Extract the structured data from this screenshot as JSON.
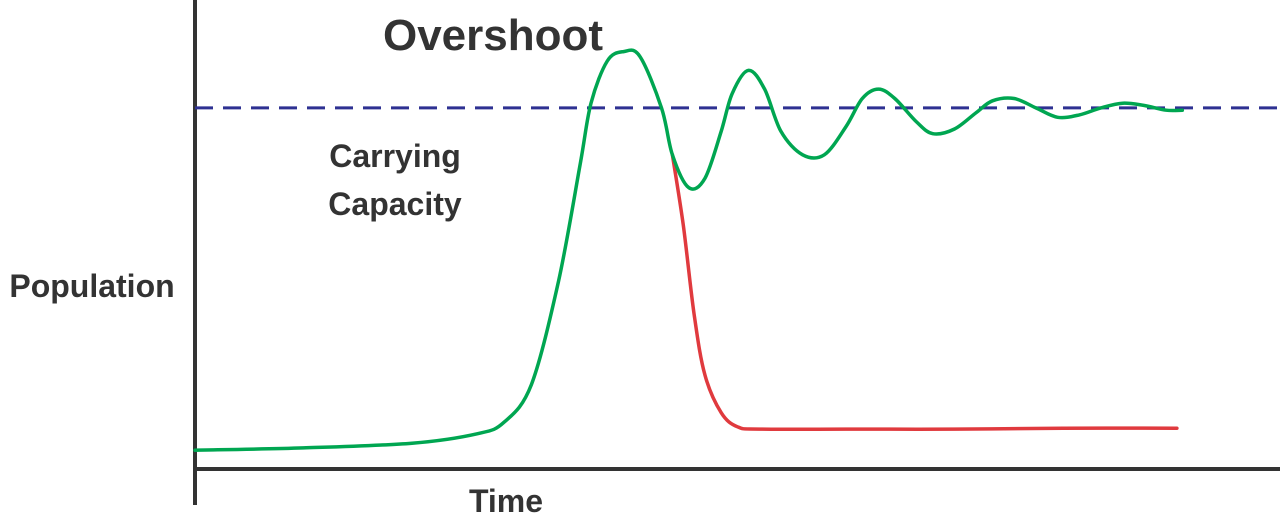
{
  "chart_data": {
    "type": "line",
    "title": "Overshoot",
    "xlabel": "Time",
    "ylabel": "Population",
    "ylim": [
      0,
      100
    ],
    "xlim": [
      0,
      100
    ],
    "grid": false,
    "reference_line": {
      "label_line1": "Carrying",
      "label_line2": "Capacity",
      "value": 77,
      "color": "#2e3192",
      "style": "dashed"
    },
    "series": [
      {
        "color": "#00a651",
        "points": [
          [
            0,
            4
          ],
          [
            10,
            4.5
          ],
          [
            20,
            5.5
          ],
          [
            26,
            7.5
          ],
          [
            28.5,
            10
          ],
          [
            31,
            18
          ],
          [
            33.5,
            40
          ],
          [
            35.5,
            65
          ],
          [
            36.5,
            78
          ],
          [
            38,
            87
          ],
          [
            39.5,
            89
          ],
          [
            41,
            88
          ],
          [
            43,
            77
          ],
          [
            44,
            67
          ],
          [
            45.5,
            60
          ],
          [
            47,
            62
          ],
          [
            48.5,
            72
          ],
          [
            49.5,
            80
          ],
          [
            51,
            85
          ],
          [
            52.5,
            81
          ],
          [
            54,
            72
          ],
          [
            56,
            67
          ],
          [
            58,
            67
          ],
          [
            60,
            73
          ],
          [
            61.5,
            79
          ],
          [
            63,
            81
          ],
          [
            64.5,
            79
          ],
          [
            66.5,
            74
          ],
          [
            68,
            71.5
          ],
          [
            70,
            72.5
          ],
          [
            72,
            76
          ],
          [
            73.5,
            78.5
          ],
          [
            75.5,
            79
          ],
          [
            77.5,
            77
          ],
          [
            79.5,
            75
          ],
          [
            81.5,
            75.5
          ],
          [
            83.5,
            77
          ],
          [
            85.5,
            78
          ],
          [
            87.5,
            77.5
          ],
          [
            89.5,
            76.5
          ],
          [
            91,
            76.5
          ]
        ]
      },
      {
        "color": "#e03a3e",
        "points": [
          [
            44,
            67
          ],
          [
            45,
            52
          ],
          [
            46,
            33
          ],
          [
            47,
            20
          ],
          [
            48.5,
            12
          ],
          [
            50,
            9
          ],
          [
            52,
            8.5
          ],
          [
            60,
            8.5
          ],
          [
            70,
            8.5
          ],
          [
            80,
            8.7
          ],
          [
            90.5,
            8.7
          ]
        ]
      }
    ],
    "annotations": []
  }
}
